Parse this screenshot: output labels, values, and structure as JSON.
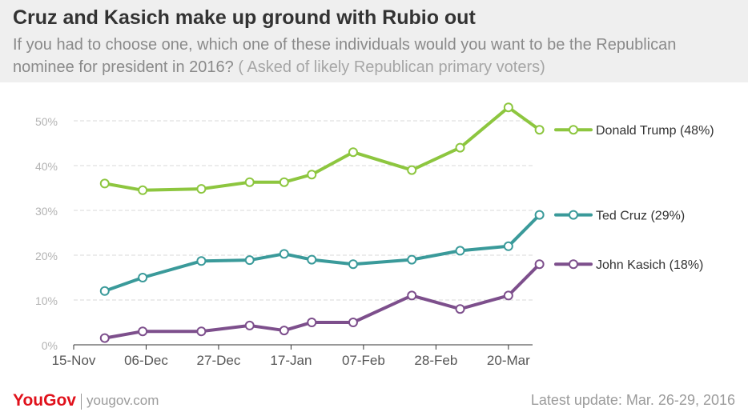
{
  "header": {
    "title": "Cruz and Kasich make up ground with Rubio out",
    "subtitle": "If you had to choose one, which one of these individuals would you want to be the Republican nominee for president in 2016?",
    "subtitle_note": "( Asked of likely Republican primary voters)"
  },
  "footer": {
    "brand_main": "YouGov",
    "website": "yougov.com",
    "update": "Latest update: Mar. 26-29, 2016"
  },
  "colors": {
    "trump": "#8dc63f",
    "cruz": "#3a9a9a",
    "kasich": "#7d4f8c",
    "grid": "#d9d9d9",
    "axis_text": "#b3b3b3",
    "tick_text": "#555555"
  },
  "chart_data": {
    "type": "line",
    "title": "",
    "xlabel": "",
    "ylabel": "",
    "x_axis_type": "date",
    "x_tick_labels": [
      {
        "date": "2015-11-15",
        "label": "15-Nov"
      },
      {
        "date": "2015-12-06",
        "label": "06-Dec"
      },
      {
        "date": "2015-12-27",
        "label": "27-Dec"
      },
      {
        "date": "2016-01-17",
        "label": "17-Jan"
      },
      {
        "date": "2016-02-07",
        "label": "07-Feb"
      },
      {
        "date": "2016-02-28",
        "label": "28-Feb"
      },
      {
        "date": "2016-03-20",
        "label": "20-Mar"
      }
    ],
    "x_range": [
      "2015-11-15",
      "2016-03-27"
    ],
    "ylim": [
      0,
      50
    ],
    "y_ticks": [
      0,
      10,
      20,
      30,
      40,
      50
    ],
    "y_tick_labels": [
      "0%",
      "10%",
      "20%",
      "30%",
      "40%",
      "50%"
    ],
    "grid": true,
    "legend_position": "right",
    "series": [
      {
        "name": "Donald Trump (48%)",
        "color": "#8dc63f",
        "points": [
          [
            "2015-11-24",
            36
          ],
          [
            "2015-12-05",
            34.5
          ],
          [
            "2015-12-22",
            34.8
          ],
          [
            "2016-01-05",
            36.3
          ],
          [
            "2016-01-15",
            36.3
          ],
          [
            "2016-01-23",
            38
          ],
          [
            "2016-02-04",
            43
          ],
          [
            "2016-02-21",
            39
          ],
          [
            "2016-03-06",
            44
          ],
          [
            "2016-03-20",
            53
          ],
          [
            "2016-03-29",
            48
          ]
        ]
      },
      {
        "name": "Ted Cruz (29%)",
        "color": "#3a9a9a",
        "points": [
          [
            "2015-11-24",
            12
          ],
          [
            "2015-12-05",
            15
          ],
          [
            "2015-12-22",
            18.7
          ],
          [
            "2016-01-05",
            18.9
          ],
          [
            "2016-01-15",
            20.3
          ],
          [
            "2016-01-23",
            19
          ],
          [
            "2016-02-04",
            18
          ],
          [
            "2016-02-21",
            19
          ],
          [
            "2016-03-06",
            21
          ],
          [
            "2016-03-20",
            22
          ],
          [
            "2016-03-29",
            29
          ]
        ]
      },
      {
        "name": "John Kasich (18%)",
        "color": "#7d4f8c",
        "points": [
          [
            "2015-11-24",
            1.5
          ],
          [
            "2015-12-05",
            3
          ],
          [
            "2015-12-22",
            3
          ],
          [
            "2016-01-05",
            4.3
          ],
          [
            "2016-01-15",
            3.2
          ],
          [
            "2016-01-23",
            5
          ],
          [
            "2016-02-04",
            5
          ],
          [
            "2016-02-21",
            11
          ],
          [
            "2016-03-06",
            8
          ],
          [
            "2016-03-20",
            11
          ],
          [
            "2016-03-29",
            18
          ]
        ]
      }
    ]
  }
}
